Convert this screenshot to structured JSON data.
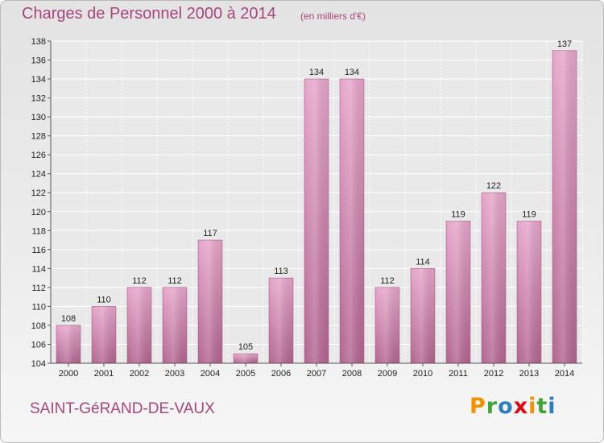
{
  "header": {
    "title": "Charges de Personnel 2000 à 2014",
    "unit_note": "(en milliers d'€)"
  },
  "footer": {
    "commune": "SAINT-GéRAND-DE-VAUX",
    "logo_letters": [
      {
        "char": "P",
        "color": "#f39200"
      },
      {
        "char": "r",
        "color": "#3fa535"
      },
      {
        "char": "o",
        "color": "#2a7fc1"
      },
      {
        "char": "x",
        "color": "#e30613"
      },
      {
        "char": "i",
        "color": "#f39200"
      },
      {
        "char": "t",
        "color": "#3fa535"
      },
      {
        "char": "i",
        "color": "#2a7fc1"
      }
    ]
  },
  "chart_data": {
    "type": "bar",
    "categories": [
      "2000",
      "2001",
      "2002",
      "2003",
      "2004",
      "2005",
      "2006",
      "2007",
      "2008",
      "2009",
      "2010",
      "2011",
      "2012",
      "2013",
      "2014"
    ],
    "values": [
      108,
      110,
      112,
      112,
      117,
      105,
      113,
      134,
      134,
      112,
      114,
      119,
      122,
      119,
      137
    ],
    "ylim": [
      104,
      138
    ],
    "yticks": [
      104,
      106,
      108,
      110,
      112,
      114,
      116,
      118,
      120,
      122,
      124,
      126,
      128,
      130,
      132,
      134,
      136,
      138
    ],
    "grid": true,
    "bar_color": "#d98ab5",
    "bar_color_dark": "#b06490",
    "xlabel": "",
    "ylabel": ""
  }
}
